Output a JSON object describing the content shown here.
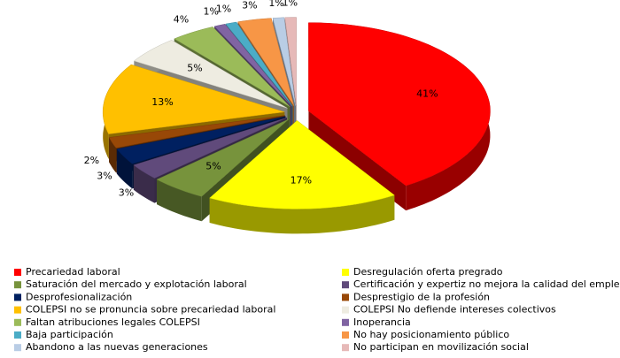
{
  "chart_data": {
    "type": "pie",
    "categories": [
      "Precariedad laboral",
      "Desregulación oferta pregrado",
      "Saturación del mercado y explotación laboral",
      "Certificación y expertiz no mejora la calidad del empleo",
      "Desprofesionalización",
      "Desprestigio de la profesión",
      "COLEPSI no se pronuncia sobre precariedad laboral",
      "COLEPSI No defiende intereses colectivos",
      "Faltan atribuciones legales COLEPSI",
      "Inoperancia",
      "Baja participación",
      "No hay posicionamiento público",
      "Abandono a las nuevas generaciones",
      "No participan en movilización social"
    ],
    "values": [
      41,
      17,
      5,
      3,
      3,
      2,
      13,
      5,
      4,
      1,
      1,
      3,
      1,
      1
    ],
    "value_labels": [
      "41%",
      "17%",
      "5%",
      "3%",
      "3%",
      "2%",
      "13%",
      "5%",
      "4%",
      "1%",
      "1%",
      "3%",
      "1%",
      "1%"
    ],
    "colors": [
      "#ff0000",
      "#ffff00",
      "#77933c",
      "#604a7b",
      "#002060",
      "#984807",
      "#ffc000",
      "#eeece1",
      "#9bbb59",
      "#8064a2",
      "#4bacc6",
      "#f79646",
      "#b9cde5",
      "#e6b9b8"
    ],
    "legend": "bottom"
  }
}
